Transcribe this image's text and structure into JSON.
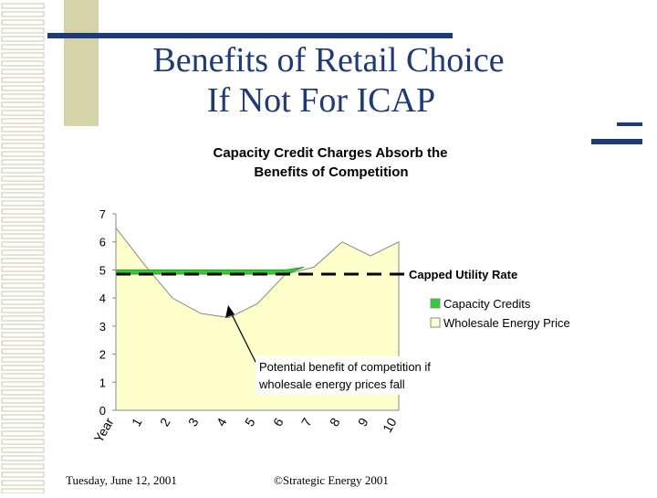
{
  "slide": {
    "title_line1": "Benefits of Retail Choice",
    "title_line2": "If Not For ICAP",
    "footer_date": "Tuesday, June 12, 2001",
    "footer_copyright": "©Strategic Energy 2001"
  },
  "chart_data": {
    "type": "area",
    "title_line1": "Capacity Credit Charges Absorb the",
    "title_line2": "Benefits of Competition",
    "categories": [
      "Year",
      "1",
      "2",
      "3",
      "4",
      "5",
      "6",
      "7",
      "8",
      "9",
      "10"
    ],
    "series": [
      {
        "name": "Wholesale Energy Price",
        "color": "#ffffcc",
        "values": [
          6.5,
          5.2,
          4.0,
          3.45,
          3.3,
          3.8,
          4.85,
          5.1,
          6.0,
          5.5,
          6.0
        ]
      },
      {
        "name": "Capacity Credits",
        "color": "#33cc33",
        "values": [
          5.0,
          5.0,
          5.0,
          5.0,
          5.0,
          5.0,
          5.0,
          null,
          null,
          null,
          null
        ]
      }
    ],
    "reference_line": {
      "name": "Capped Utility Rate",
      "value": 4.85
    },
    "annotation": {
      "line1": "Potential benefit of competition if",
      "line2": "wholesale energy prices fall"
    },
    "ylim": [
      0,
      7
    ],
    "yticks": [
      0,
      1,
      2,
      3,
      4,
      5,
      6,
      7
    ]
  }
}
